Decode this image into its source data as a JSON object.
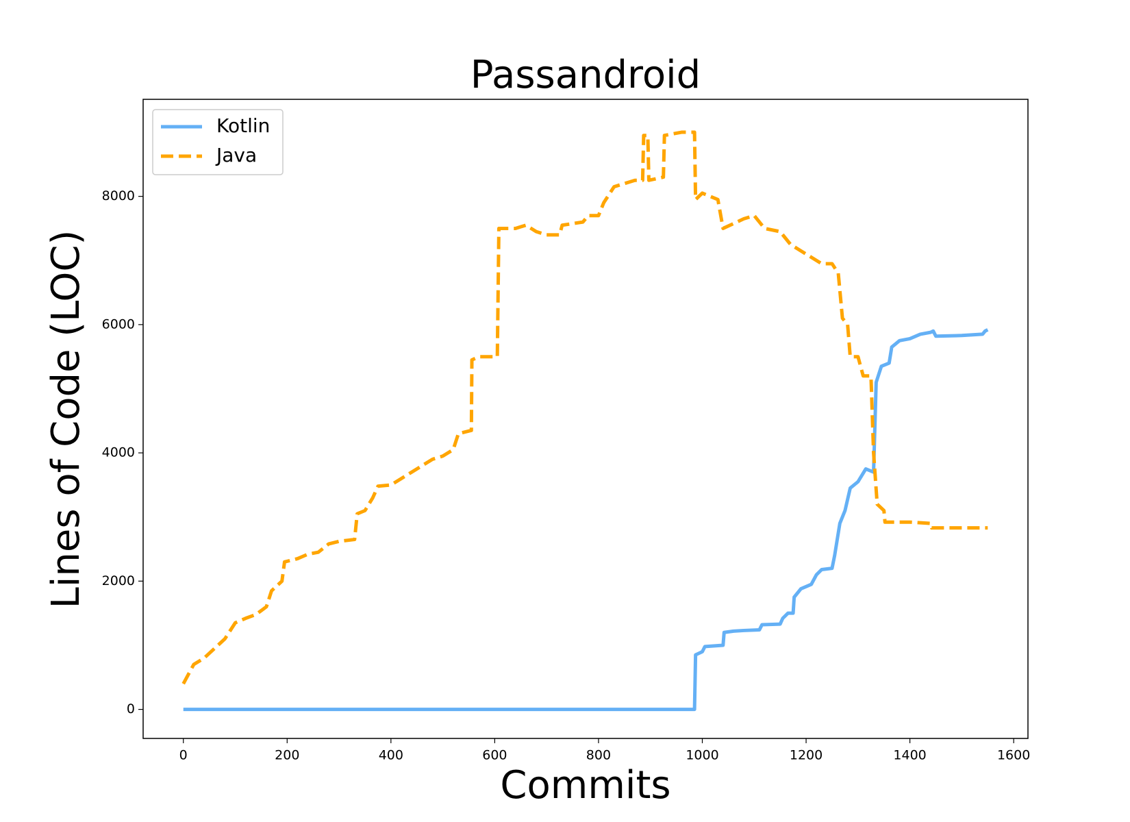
{
  "chart_data": {
    "type": "line",
    "title": "Passandroid",
    "x_label": "Commits",
    "y_label": "Lines of Code (LOC)",
    "xlim": [
      -77.5,
      1627.5
    ],
    "ylim": [
      -453,
      9513
    ],
    "xticks": [
      0,
      200,
      400,
      600,
      800,
      1000,
      1200,
      1400,
      1600
    ],
    "yticks": [
      0,
      2000,
      4000,
      6000,
      8000
    ],
    "legend": "upper left",
    "series": [
      {
        "name": "Kotlin",
        "color": "#64b0f5",
        "style": "solid",
        "x": [
          0,
          985,
          987,
          1000,
          1005,
          1040,
          1042,
          1060,
          1080,
          1110,
          1115,
          1150,
          1155,
          1165,
          1175,
          1177,
          1190,
          1210,
          1220,
          1230,
          1250,
          1255,
          1265,
          1275,
          1285,
          1300,
          1315,
          1330,
          1335,
          1345,
          1360,
          1365,
          1380,
          1400,
          1420,
          1440,
          1445,
          1450,
          1500,
          1540,
          1545,
          1550
        ],
        "values": [
          0,
          0,
          850,
          900,
          980,
          1000,
          1200,
          1220,
          1230,
          1240,
          1320,
          1330,
          1420,
          1500,
          1500,
          1750,
          1880,
          1950,
          2100,
          2180,
          2200,
          2400,
          2900,
          3100,
          3450,
          3550,
          3750,
          3700,
          5100,
          5350,
          5400,
          5650,
          5750,
          5780,
          5850,
          5880,
          5900,
          5820,
          5830,
          5850,
          5900,
          5920
        ]
      },
      {
        "name": "Java",
        "color": "#ffa500",
        "style": "dashed",
        "x": [
          0,
          10,
          20,
          40,
          60,
          80,
          100,
          120,
          140,
          160,
          170,
          190,
          195,
          220,
          240,
          260,
          280,
          300,
          330,
          335,
          350,
          365,
          375,
          400,
          420,
          440,
          460,
          480,
          500,
          520,
          530,
          555,
          556,
          570,
          605,
          608,
          640,
          660,
          680,
          700,
          725,
          730,
          770,
          780,
          800,
          810,
          830,
          850,
          870,
          885,
          887,
          895,
          897,
          925,
          927,
          960,
          985,
          987,
          1000,
          1030,
          1040,
          1080,
          1100,
          1120,
          1150,
          1170,
          1200,
          1230,
          1250,
          1262,
          1270,
          1280,
          1285,
          1300,
          1310,
          1325,
          1330,
          1337,
          1350,
          1352,
          1400,
          1440,
          1442,
          1550
        ],
        "values": [
          400,
          550,
          700,
          800,
          950,
          1100,
          1350,
          1420,
          1480,
          1600,
          1850,
          2000,
          2300,
          2350,
          2420,
          2450,
          2580,
          2620,
          2650,
          3050,
          3100,
          3300,
          3480,
          3500,
          3600,
          3700,
          3800,
          3900,
          3950,
          4050,
          4300,
          4350,
          5450,
          5500,
          5500,
          7500,
          7500,
          7550,
          7450,
          7400,
          7400,
          7550,
          7600,
          7700,
          7700,
          7900,
          8150,
          8200,
          8250,
          8250,
          8950,
          8950,
          8250,
          8300,
          8950,
          9000,
          9000,
          7950,
          8050,
          7950,
          7500,
          7650,
          7700,
          7500,
          7450,
          7250,
          7100,
          6950,
          6950,
          6800,
          6100,
          6000,
          5500,
          5500,
          5200,
          5200,
          4000,
          3200,
          3100,
          2920,
          2920,
          2900,
          2830,
          2830
        ]
      }
    ]
  }
}
